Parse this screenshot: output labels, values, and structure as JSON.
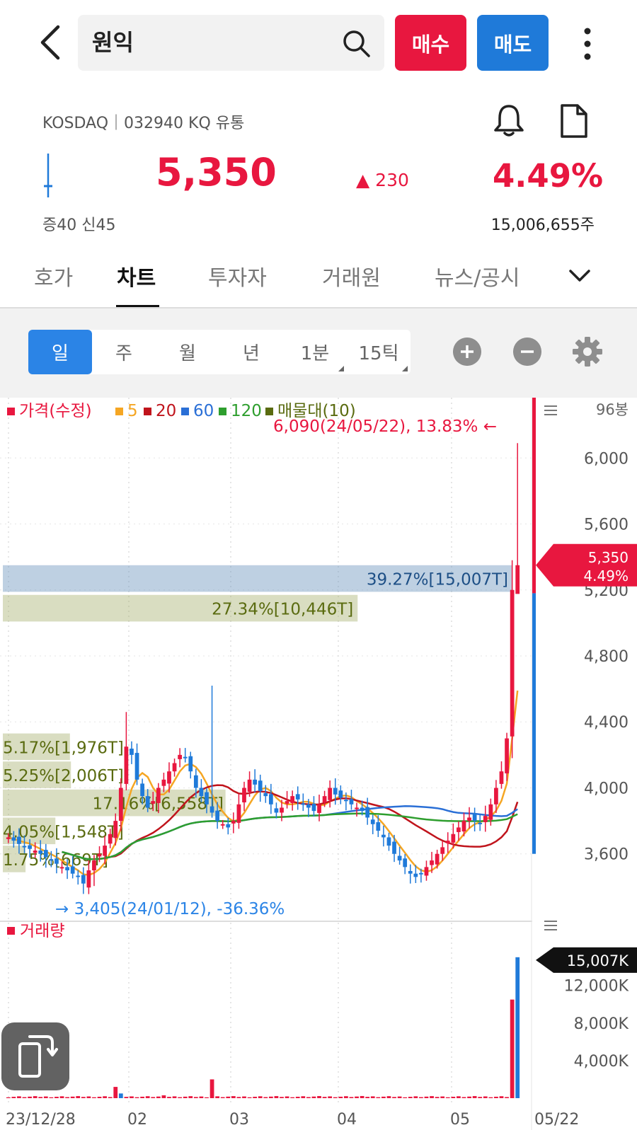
{
  "header": {
    "search_value": "원익",
    "buy_label": "매수",
    "sell_label": "매도"
  },
  "quote": {
    "market_info": "KOSDAQ｜032940 KQ 유통",
    "price": "5,350",
    "change": "▲ 230",
    "change_pct": "4.49%",
    "margin_info": "증40   신45",
    "volume": "15,006,655주"
  },
  "tabs": [
    {
      "label": "호가"
    },
    {
      "label": "차트"
    },
    {
      "label": "투자자"
    },
    {
      "label": "거래원"
    },
    {
      "label": "뉴스/공시"
    }
  ],
  "active_tab": "차트",
  "periods": [
    "일",
    "주",
    "월",
    "년",
    "1분",
    "15틱"
  ],
  "active_period": "일",
  "colors": {
    "up": "#e8173f",
    "down": "#1f7ad9",
    "ma5": "#f5a623",
    "ma20": "#c0141c",
    "ma60": "#2a6fd6",
    "ma120": "#2e9e2e",
    "profile": "#5a6b10"
  },
  "chart_data": {
    "type": "candlestick",
    "legend": [
      {
        "name": "가격(수정)",
        "color": "#e8173f"
      },
      {
        "name": "5",
        "color": "#f5a623"
      },
      {
        "name": "20",
        "color": "#c0141c"
      },
      {
        "name": "60",
        "color": "#2a6fd6"
      },
      {
        "name": "120",
        "color": "#2e9e2e"
      },
      {
        "name": "매물대(10)",
        "color": "#5a6b10"
      }
    ],
    "bar_count": "96봉",
    "y_ticks": [
      6000,
      5600,
      5200,
      4800,
      4400,
      4000,
      3600
    ],
    "y_tick_labels": [
      "6,000",
      "5,600",
      "5,200",
      "4,800",
      "4,400",
      "4,000",
      "3,600"
    ],
    "y_range": [
      3320,
      6280
    ],
    "x_labels": [
      "23/12/28",
      "02",
      "03",
      "04",
      "05",
      "05/22"
    ],
    "high_annotation": "6,090(24/05/22), 13.83%",
    "low_annotation": "3,405(24/01/12), -36.36%",
    "current_price_label": "5,350",
    "current_pct_label": "4.49%",
    "current_price": 5350,
    "volume_profile": [
      {
        "label": "39.27%[15,007T]",
        "pct": 39.27,
        "low": 5180,
        "high": 5350
      },
      {
        "label": "27.34%[10,446T]",
        "pct": 27.34,
        "low": 5000,
        "high": 5170
      },
      {
        "label": "5.17%[1,976T]",
        "pct": 5.17,
        "low": 4160,
        "high": 4330
      },
      {
        "label": "5.25%[2,006T]",
        "pct": 5.25,
        "low": 3990,
        "high": 4160
      },
      {
        "label": "17.16%[6,558T]",
        "pct": 17.16,
        "low": 3820,
        "high": 3990
      },
      {
        "label": "4.05%[1,548T]",
        "pct": 4.05,
        "low": 3650,
        "high": 3820
      },
      {
        "label": "1.75%[669T]",
        "pct": 1.75,
        "low": 3480,
        "high": 3650
      }
    ],
    "volume_title": "거래량",
    "volume_ticks": [
      12000,
      8000,
      4000
    ],
    "volume_tick_labels": [
      "12,000K",
      "8,000K",
      "4,000K"
    ],
    "volume_max": 16200,
    "last_volume_label": "15,007K",
    "last_volume": 15007
  }
}
